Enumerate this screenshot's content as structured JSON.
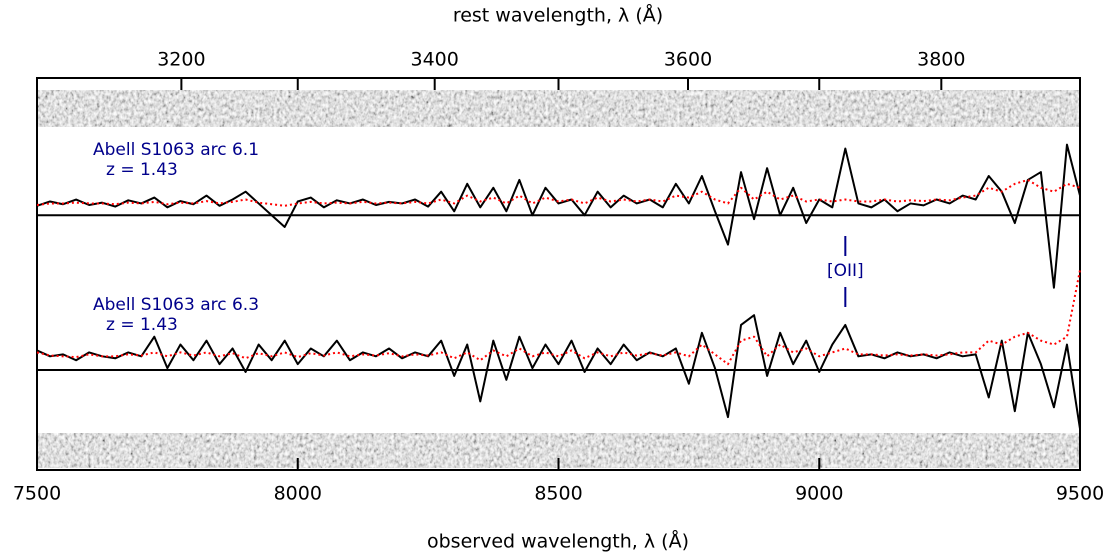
{
  "chart_data": {
    "type": "line",
    "xlabel": "observed wavelength, λ (Å)",
    "x2label": "rest wavelength, λ (Å)",
    "xlim": [
      7500,
      9500
    ],
    "xticks": [
      7500,
      8000,
      8500,
      9000,
      9500
    ],
    "x2lim": [
      3086,
      3909.5
    ],
    "x2ticks": [
      3200,
      3400,
      3600,
      3800
    ],
    "ylim": [
      0,
      10
    ],
    "baselines": [
      6.5,
      2.55
    ],
    "annotations": [
      {
        "title": "Abell S1063 arc 6.1",
        "redshift": "z = 1.43"
      },
      {
        "title": "Abell S1063 arc 6.3",
        "redshift": "z = 1.43"
      }
    ],
    "line_marker": {
      "label": "[OII]",
      "x": 9050
    },
    "x": [
      7500,
      7525,
      7550,
      7575,
      7600,
      7625,
      7650,
      7675,
      7700,
      7725,
      7750,
      7775,
      7800,
      7825,
      7850,
      7875,
      7900,
      7925,
      7950,
      7975,
      8000,
      8025,
      8050,
      8075,
      8100,
      8125,
      8150,
      8175,
      8200,
      8225,
      8250,
      8275,
      8300,
      8325,
      8350,
      8375,
      8400,
      8425,
      8450,
      8475,
      8500,
      8525,
      8550,
      8575,
      8600,
      8625,
      8650,
      8675,
      8700,
      8725,
      8750,
      8775,
      8800,
      8825,
      8850,
      8875,
      8900,
      8925,
      8950,
      8975,
      9000,
      9025,
      9050,
      9075,
      9100,
      9125,
      9150,
      9175,
      9200,
      9225,
      9250,
      9275,
      9300,
      9325,
      9350,
      9375,
      9400,
      9425,
      9450,
      9475,
      9500
    ],
    "series": [
      {
        "color": "#000000",
        "style": "solid",
        "values": [
          6.74,
          6.85,
          6.78,
          6.9,
          6.76,
          6.82,
          6.72,
          6.88,
          6.8,
          6.95,
          6.7,
          6.86,
          6.78,
          7.0,
          6.74,
          6.9,
          7.1,
          6.8,
          6.5,
          6.2,
          6.85,
          6.95,
          6.7,
          6.88,
          6.8,
          6.9,
          6.76,
          6.84,
          6.8,
          6.9,
          6.72,
          7.1,
          6.6,
          7.3,
          6.7,
          7.2,
          6.6,
          7.4,
          6.5,
          7.2,
          6.8,
          6.9,
          6.5,
          7.1,
          6.7,
          7.0,
          6.8,
          6.9,
          6.7,
          7.3,
          6.8,
          7.5,
          6.6,
          5.75,
          7.6,
          6.4,
          7.7,
          6.5,
          7.2,
          6.3,
          6.9,
          6.7,
          8.2,
          6.8,
          6.7,
          6.9,
          6.6,
          6.8,
          6.75,
          6.9,
          6.8,
          7.0,
          6.9,
          7.5,
          7.1,
          6.3,
          7.4,
          7.6,
          4.65,
          8.3,
          7.0
        ]
      },
      {
        "color": "#ff0000",
        "style": "dotted",
        "values": [
          6.76,
          6.8,
          6.8,
          6.82,
          6.8,
          6.8,
          6.78,
          6.82,
          6.8,
          6.84,
          6.78,
          6.82,
          6.8,
          6.86,
          6.8,
          6.84,
          6.9,
          6.82,
          6.78,
          6.74,
          6.8,
          6.84,
          6.8,
          6.82,
          6.8,
          6.84,
          6.8,
          6.82,
          6.8,
          6.84,
          6.8,
          6.9,
          6.8,
          7.0,
          6.85,
          6.95,
          6.8,
          7.0,
          6.8,
          6.95,
          6.85,
          6.9,
          6.8,
          6.95,
          6.85,
          6.9,
          6.85,
          6.9,
          6.85,
          7.0,
          6.95,
          7.1,
          6.9,
          6.8,
          7.2,
          6.9,
          7.1,
          6.9,
          7.0,
          6.85,
          6.9,
          6.85,
          6.9,
          6.85,
          6.85,
          6.9,
          6.85,
          6.88,
          6.86,
          6.9,
          6.88,
          6.95,
          7.0,
          7.2,
          7.1,
          7.3,
          7.4,
          7.2,
          7.1,
          7.3,
          7.2
        ]
      },
      {
        "color": "#000000",
        "style": "solid",
        "values": [
          3.05,
          2.9,
          2.95,
          2.8,
          3.0,
          2.9,
          2.85,
          3.0,
          2.9,
          3.4,
          2.6,
          3.2,
          2.8,
          3.3,
          2.7,
          3.1,
          2.5,
          3.2,
          2.8,
          3.3,
          2.7,
          3.1,
          2.9,
          3.3,
          2.8,
          3.0,
          2.9,
          3.1,
          2.85,
          3.0,
          2.9,
          3.3,
          2.4,
          3.2,
          1.75,
          3.3,
          2.3,
          3.4,
          2.6,
          3.2,
          2.7,
          3.3,
          2.5,
          3.1,
          2.7,
          3.2,
          2.8,
          3.0,
          2.9,
          3.1,
          2.2,
          3.5,
          2.6,
          1.35,
          3.7,
          3.95,
          2.4,
          3.5,
          2.7,
          3.3,
          2.5,
          3.2,
          3.7,
          2.9,
          2.95,
          2.85,
          3.0,
          2.9,
          2.95,
          2.85,
          3.0,
          2.9,
          2.95,
          1.85,
          3.3,
          1.5,
          3.5,
          2.7,
          1.6,
          3.2,
          1.05
        ]
      },
      {
        "color": "#ff0000",
        "style": "dotted",
        "values": [
          3.0,
          2.92,
          2.9,
          2.88,
          2.95,
          2.9,
          2.9,
          2.95,
          2.92,
          3.0,
          2.9,
          3.0,
          2.92,
          3.0,
          2.9,
          2.98,
          2.85,
          2.98,
          2.9,
          3.0,
          2.88,
          2.98,
          2.92,
          3.0,
          2.9,
          2.95,
          2.92,
          2.98,
          2.9,
          2.95,
          2.92,
          3.0,
          2.85,
          3.0,
          2.8,
          3.05,
          2.9,
          3.1,
          2.9,
          3.0,
          2.9,
          3.05,
          2.85,
          3.0,
          2.9,
          3.0,
          2.92,
          2.98,
          2.92,
          3.0,
          2.9,
          3.2,
          2.95,
          2.7,
          3.3,
          3.4,
          2.9,
          3.2,
          3.0,
          3.1,
          2.9,
          3.0,
          3.1,
          2.95,
          2.95,
          2.92,
          2.95,
          2.92,
          2.95,
          2.92,
          2.95,
          3.0,
          3.0,
          3.3,
          3.2,
          3.4,
          3.5,
          3.3,
          3.2,
          3.4,
          5.1
        ]
      }
    ]
  }
}
